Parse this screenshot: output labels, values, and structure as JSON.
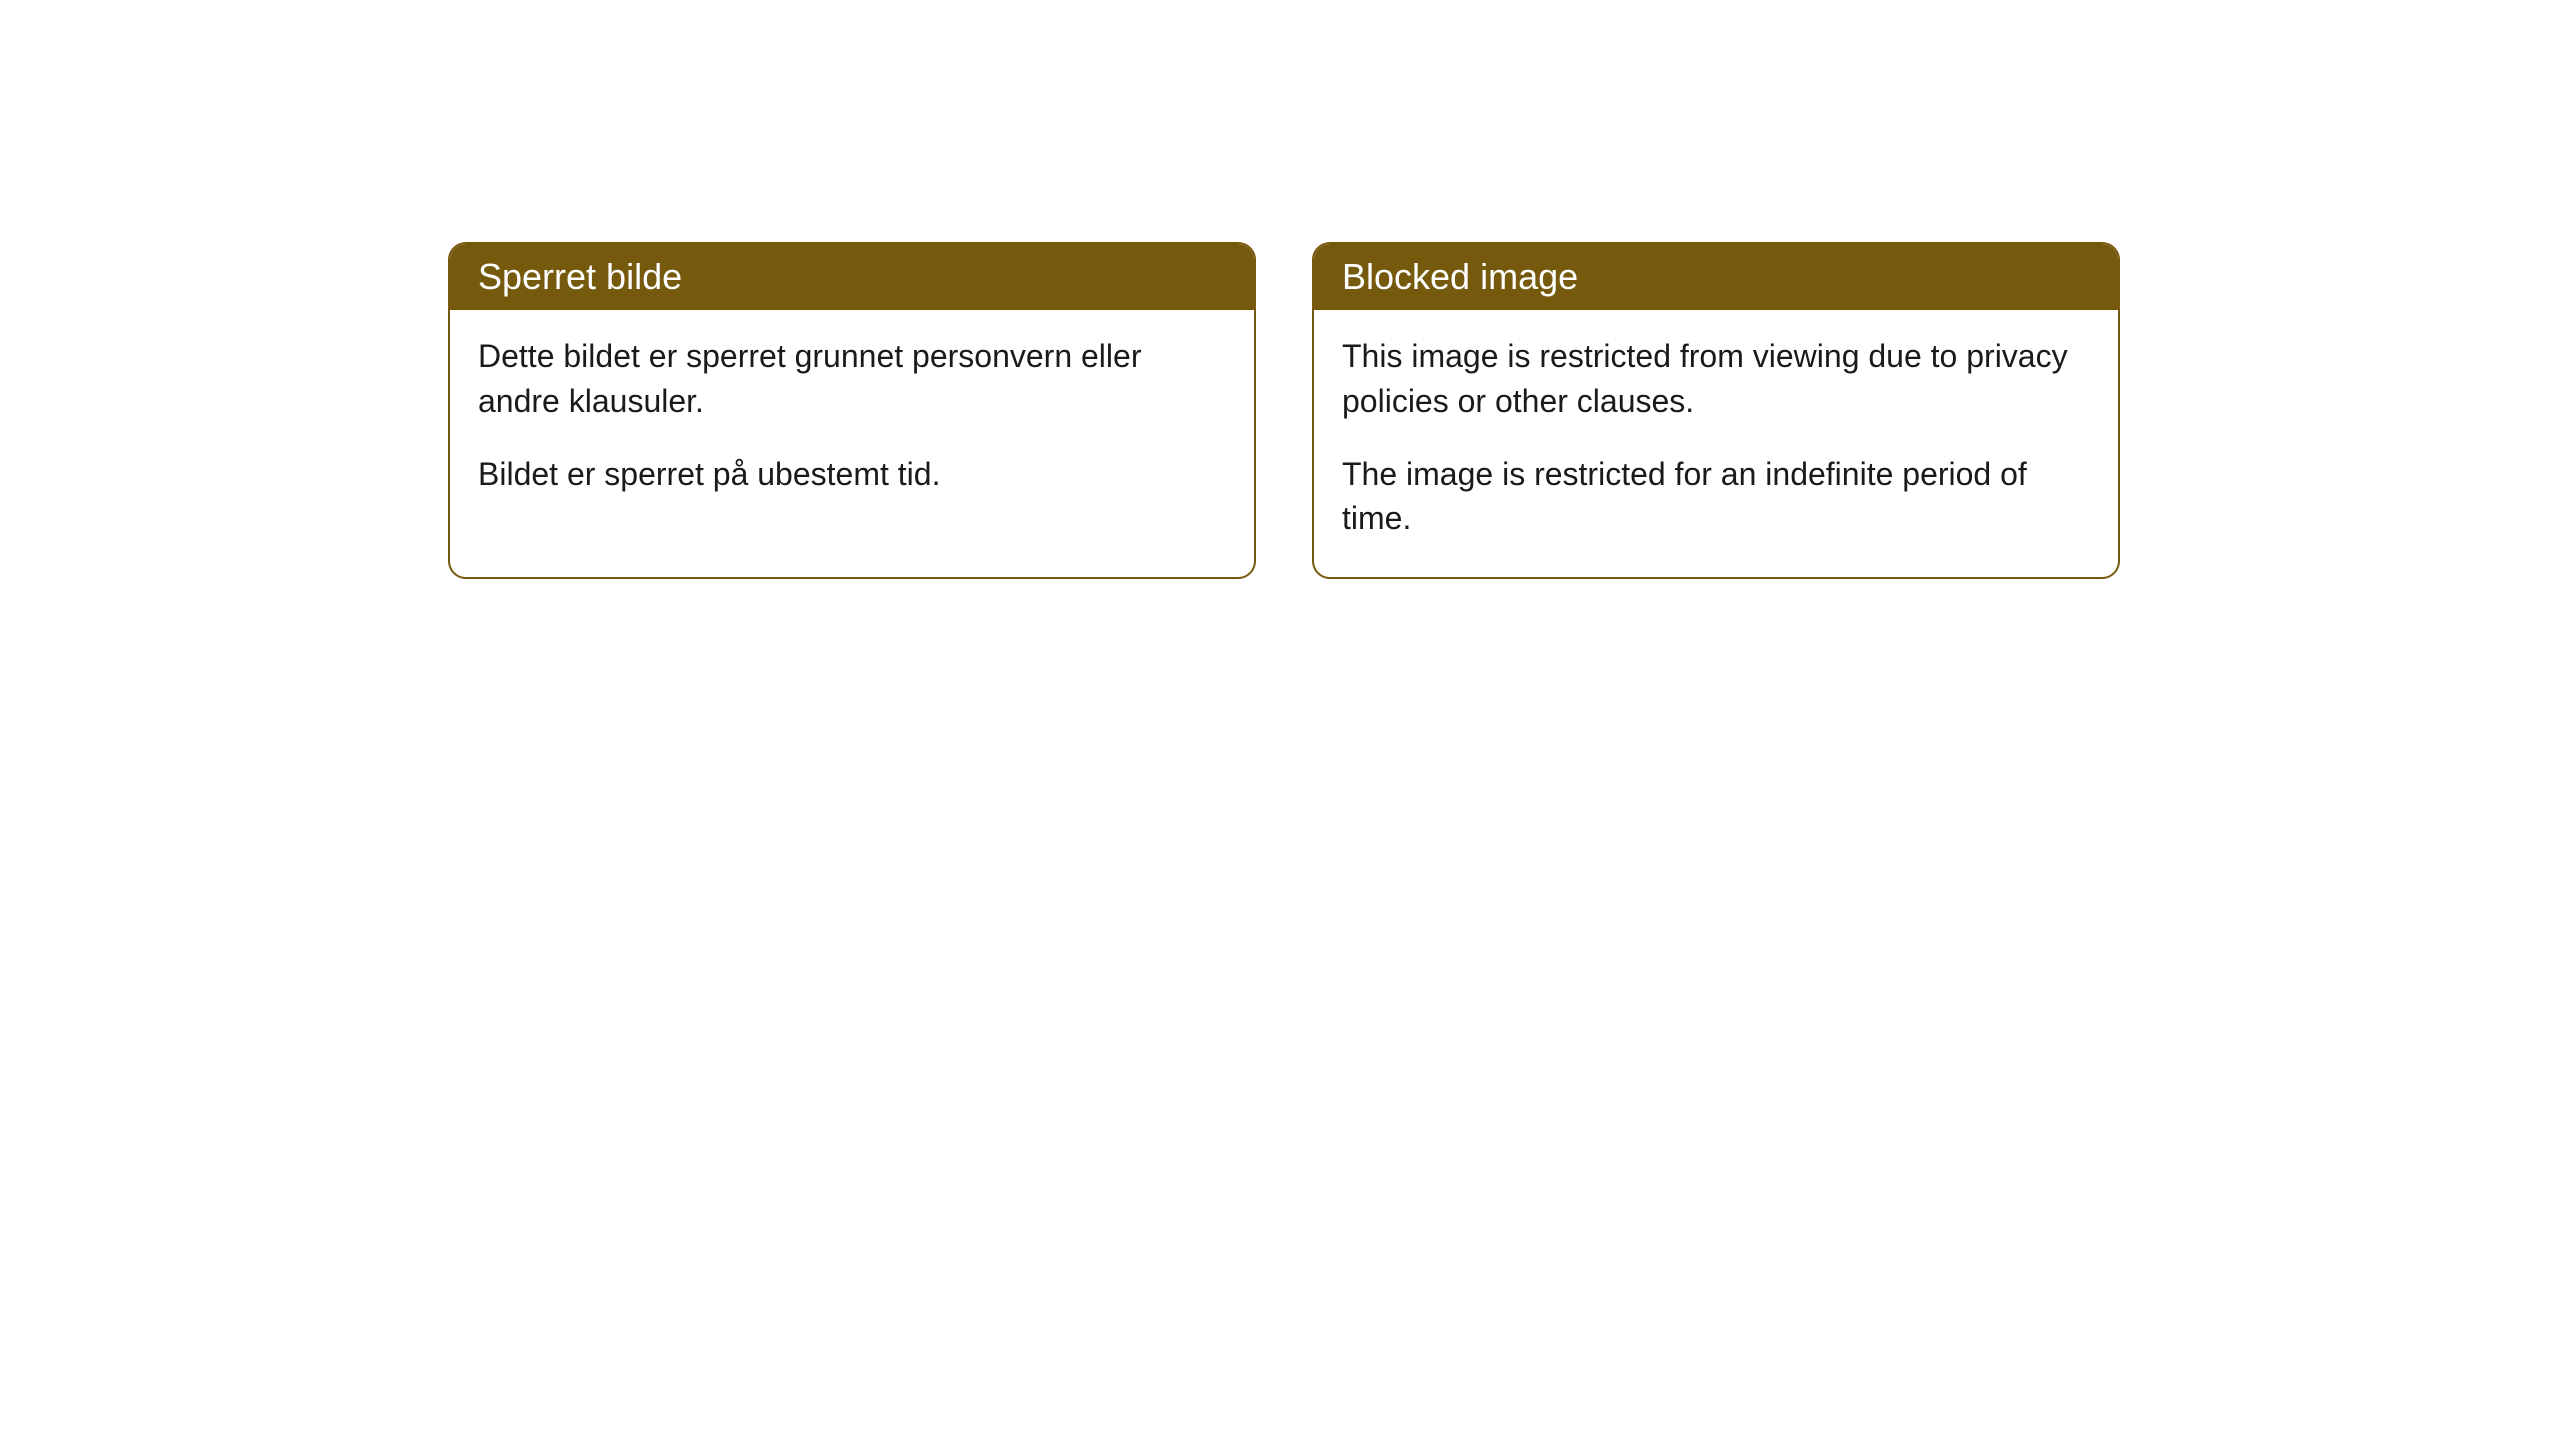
{
  "cards": [
    {
      "title": "Sperret bilde",
      "paragraph1": "Dette bildet er sperret grunnet personvern eller andre klausuler.",
      "paragraph2": "Bildet er sperret på ubestemt tid."
    },
    {
      "title": "Blocked image",
      "paragraph1": "This image is restricted from viewing due to privacy policies or other clauses.",
      "paragraph2": "The image is restricted for an indefinite period of time."
    }
  ],
  "style": {
    "header_background": "#755a0e",
    "header_text_color": "#ffffff",
    "border_color": "#755a0e",
    "body_background": "#ffffff",
    "body_text_color": "#1a1a1a",
    "border_radius": 18,
    "header_fontsize": 36,
    "body_fontsize": 32
  }
}
